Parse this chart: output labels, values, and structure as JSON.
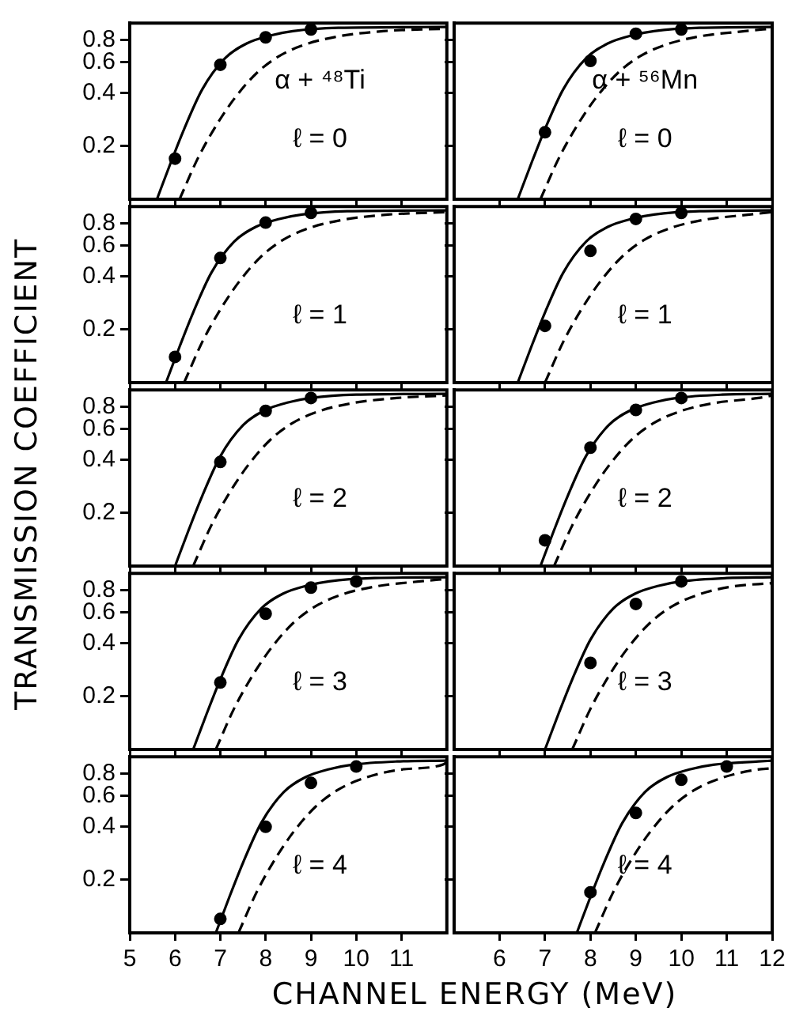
{
  "chart_data": [
    {
      "type": "line",
      "log": true,
      "xlim": [
        5,
        12
      ],
      "ylim": [
        0.1,
        1
      ],
      "xticks": [
        5,
        6,
        7,
        8,
        9,
        10,
        11
      ],
      "yticks": [
        0.2,
        0.4,
        0.6,
        0.8
      ],
      "tick_labels": "y",
      "annotations": [
        "α + ⁴⁸Ti",
        "ℓ = 0"
      ],
      "series": [
        {
          "type": "scatter",
          "marker": "circle",
          "color": "#000000",
          "x": [
            6,
            7,
            8,
            9
          ],
          "values": [
            0.17,
            0.58,
            0.83,
            0.92
          ]
        },
        {
          "type": "line",
          "marker": "none",
          "line_style": "solid",
          "color": "#000000",
          "x": [
            5.6,
            5.9,
            6.2,
            6.6,
            7.1,
            7.6,
            8.1,
            8.6,
            9.6,
            12
          ],
          "values": [
            0.1,
            0.16,
            0.25,
            0.42,
            0.63,
            0.77,
            0.85,
            0.9,
            0.94,
            0.95
          ]
        },
        {
          "type": "line",
          "marker": "none",
          "line_style": "dashed",
          "color": "#000000",
          "x": [
            6.1,
            6.5,
            6.9,
            7.3,
            7.8,
            8.3,
            8.9,
            9.6,
            10.6,
            12
          ],
          "values": [
            0.1,
            0.17,
            0.26,
            0.37,
            0.52,
            0.65,
            0.76,
            0.84,
            0.9,
            0.93
          ]
        }
      ]
    },
    {
      "type": "line",
      "log": true,
      "xlim": [
        5,
        12
      ],
      "ylim": [
        0.1,
        1
      ],
      "xticks": [
        6,
        7,
        8,
        9,
        10,
        11,
        12
      ],
      "yticks": [
        0.2,
        0.4,
        0.6,
        0.8
      ],
      "tick_labels": false,
      "annotations": [
        "α + ⁵⁶Mn",
        "ℓ = 0"
      ],
      "series": [
        {
          "type": "scatter",
          "marker": "circle",
          "color": "#000000",
          "x": [
            7,
            8,
            9,
            10
          ],
          "values": [
            0.24,
            0.61,
            0.87,
            0.92
          ]
        },
        {
          "type": "line",
          "marker": "none",
          "line_style": "solid",
          "color": "#000000",
          "x": [
            6.4,
            6.7,
            7.0,
            7.4,
            7.9,
            8.4,
            8.9,
            9.4,
            10.4,
            12
          ],
          "values": [
            0.1,
            0.16,
            0.25,
            0.42,
            0.63,
            0.77,
            0.85,
            0.9,
            0.94,
            0.95
          ]
        },
        {
          "type": "line",
          "marker": "none",
          "line_style": "dashed",
          "color": "#000000",
          "x": [
            6.9,
            7.3,
            7.7,
            8.1,
            8.6,
            9.1,
            9.7,
            10.4,
            11.4,
            12
          ],
          "values": [
            0.1,
            0.17,
            0.26,
            0.37,
            0.52,
            0.65,
            0.76,
            0.84,
            0.9,
            0.93
          ]
        }
      ]
    },
    {
      "type": "line",
      "log": true,
      "xlim": [
        5,
        12
      ],
      "ylim": [
        0.1,
        1
      ],
      "xticks": [
        5,
        6,
        7,
        8,
        9,
        10,
        11
      ],
      "yticks": [
        0.2,
        0.4,
        0.6,
        0.8
      ],
      "tick_labels": "y",
      "annotations": [
        "ℓ = 1"
      ],
      "series": [
        {
          "type": "scatter",
          "marker": "circle",
          "color": "#000000",
          "x": [
            6,
            7,
            8,
            9
          ],
          "values": [
            0.14,
            0.51,
            0.81,
            0.92
          ]
        },
        {
          "type": "line",
          "marker": "none",
          "line_style": "solid",
          "color": "#000000",
          "x": [
            5.8,
            6.1,
            6.4,
            6.8,
            7.3,
            7.8,
            8.3,
            8.8,
            9.8,
            12
          ],
          "values": [
            0.1,
            0.16,
            0.25,
            0.42,
            0.63,
            0.77,
            0.85,
            0.9,
            0.94,
            0.95
          ]
        },
        {
          "type": "line",
          "marker": "none",
          "line_style": "dashed",
          "color": "#000000",
          "x": [
            6.2,
            6.6,
            7.0,
            7.4,
            7.9,
            8.4,
            9.0,
            9.7,
            10.7,
            12
          ],
          "values": [
            0.1,
            0.17,
            0.26,
            0.37,
            0.52,
            0.65,
            0.76,
            0.84,
            0.9,
            0.93
          ]
        }
      ]
    },
    {
      "type": "line",
      "log": true,
      "xlim": [
        5,
        12
      ],
      "ylim": [
        0.1,
        1
      ],
      "xticks": [
        6,
        7,
        8,
        9,
        10,
        11,
        12
      ],
      "yticks": [
        0.2,
        0.4,
        0.6,
        0.8
      ],
      "tick_labels": false,
      "annotations": [
        "ℓ = 1"
      ],
      "series": [
        {
          "type": "scatter",
          "marker": "circle",
          "color": "#000000",
          "x": [
            7,
            8,
            9,
            10
          ],
          "values": [
            0.21,
            0.56,
            0.85,
            0.92
          ]
        },
        {
          "type": "line",
          "marker": "none",
          "line_style": "solid",
          "color": "#000000",
          "x": [
            6.4,
            6.7,
            7.0,
            7.4,
            7.9,
            8.4,
            8.9,
            9.4,
            10.4,
            12
          ],
          "values": [
            0.1,
            0.16,
            0.25,
            0.42,
            0.63,
            0.77,
            0.85,
            0.9,
            0.94,
            0.95
          ]
        },
        {
          "type": "line",
          "marker": "none",
          "line_style": "dashed",
          "color": "#000000",
          "x": [
            7.0,
            7.4,
            7.8,
            8.2,
            8.7,
            9.2,
            9.8,
            10.5,
            11.5,
            12
          ],
          "values": [
            0.1,
            0.17,
            0.26,
            0.37,
            0.52,
            0.65,
            0.76,
            0.84,
            0.9,
            0.93
          ]
        }
      ]
    },
    {
      "type": "line",
      "log": true,
      "xlim": [
        5,
        12
      ],
      "ylim": [
        0.1,
        1
      ],
      "xticks": [
        5,
        6,
        7,
        8,
        9,
        10,
        11
      ],
      "yticks": [
        0.2,
        0.4,
        0.6,
        0.8
      ],
      "tick_labels": "y",
      "ylabel": "TRANSMISSION COEFFICIENT",
      "annotations": [
        "ℓ = 2"
      ],
      "series": [
        {
          "type": "scatter",
          "marker": "circle",
          "color": "#000000",
          "x": [
            7,
            8,
            9
          ],
          "values": [
            0.39,
            0.76,
            0.9
          ]
        },
        {
          "type": "line",
          "marker": "none",
          "line_style": "solid",
          "color": "#000000",
          "x": [
            6.0,
            6.3,
            6.6,
            7.0,
            7.5,
            8.0,
            8.5,
            9.0,
            10.0,
            12
          ],
          "values": [
            0.1,
            0.16,
            0.25,
            0.42,
            0.63,
            0.77,
            0.85,
            0.9,
            0.94,
            0.95
          ]
        },
        {
          "type": "line",
          "marker": "none",
          "line_style": "dashed",
          "color": "#000000",
          "x": [
            6.4,
            6.8,
            7.2,
            7.6,
            8.1,
            8.6,
            9.2,
            9.9,
            10.9,
            12
          ],
          "values": [
            0.1,
            0.17,
            0.26,
            0.37,
            0.52,
            0.65,
            0.76,
            0.84,
            0.9,
            0.93
          ]
        }
      ]
    },
    {
      "type": "line",
      "log": true,
      "xlim": [
        5,
        12
      ],
      "ylim": [
        0.1,
        1
      ],
      "xticks": [
        6,
        7,
        8,
        9,
        10,
        11,
        12
      ],
      "yticks": [
        0.2,
        0.4,
        0.6,
        0.8
      ],
      "tick_labels": false,
      "annotations": [
        "ℓ = 2"
      ],
      "series": [
        {
          "type": "scatter",
          "marker": "circle",
          "color": "#000000",
          "x": [
            7,
            8,
            9,
            10
          ],
          "values": [
            0.14,
            0.47,
            0.77,
            0.9
          ]
        },
        {
          "type": "line",
          "marker": "none",
          "line_style": "solid",
          "color": "#000000",
          "x": [
            6.9,
            7.2,
            7.5,
            7.9,
            8.4,
            8.9,
            9.4,
            9.9,
            10.9,
            12
          ],
          "values": [
            0.1,
            0.16,
            0.25,
            0.42,
            0.63,
            0.77,
            0.85,
            0.9,
            0.94,
            0.95
          ]
        },
        {
          "type": "line",
          "marker": "none",
          "line_style": "dashed",
          "color": "#000000",
          "x": [
            7.2,
            7.6,
            8.0,
            8.4,
            8.9,
            9.4,
            10.0,
            10.7,
            11.7,
            12
          ],
          "values": [
            0.1,
            0.17,
            0.26,
            0.37,
            0.52,
            0.65,
            0.76,
            0.84,
            0.9,
            0.93
          ]
        }
      ]
    },
    {
      "type": "line",
      "log": true,
      "xlim": [
        5,
        12
      ],
      "ylim": [
        0.1,
        1
      ],
      "xticks": [
        5,
        6,
        7,
        8,
        9,
        10,
        11
      ],
      "yticks": [
        0.2,
        0.4,
        0.6,
        0.8
      ],
      "tick_labels": "y",
      "annotations": [
        "ℓ = 3"
      ],
      "series": [
        {
          "type": "scatter",
          "marker": "circle",
          "color": "#000000",
          "x": [
            7,
            8,
            9,
            10
          ],
          "values": [
            0.24,
            0.59,
            0.83,
            0.9
          ]
        },
        {
          "type": "line",
          "marker": "none",
          "line_style": "solid",
          "color": "#000000",
          "x": [
            6.4,
            6.7,
            7.0,
            7.4,
            7.9,
            8.4,
            8.9,
            9.4,
            10.4,
            12
          ],
          "values": [
            0.1,
            0.16,
            0.25,
            0.42,
            0.63,
            0.77,
            0.85,
            0.9,
            0.94,
            0.95
          ]
        },
        {
          "type": "line",
          "marker": "none",
          "line_style": "dashed",
          "color": "#000000",
          "x": [
            6.9,
            7.3,
            7.7,
            8.1,
            8.6,
            9.1,
            9.7,
            10.4,
            11.4,
            12
          ],
          "values": [
            0.1,
            0.17,
            0.26,
            0.37,
            0.52,
            0.65,
            0.76,
            0.84,
            0.9,
            0.93
          ]
        }
      ]
    },
    {
      "type": "line",
      "log": true,
      "xlim": [
        5,
        12
      ],
      "ylim": [
        0.1,
        1
      ],
      "xticks": [
        6,
        7,
        8,
        9,
        10,
        11,
        12
      ],
      "yticks": [
        0.2,
        0.4,
        0.6,
        0.8
      ],
      "tick_labels": false,
      "annotations": [
        "ℓ = 3"
      ],
      "series": [
        {
          "type": "scatter",
          "marker": "circle",
          "color": "#000000",
          "x": [
            8,
            9,
            10
          ],
          "values": [
            0.31,
            0.67,
            0.9
          ]
        },
        {
          "type": "line",
          "marker": "none",
          "line_style": "solid",
          "color": "#000000",
          "x": [
            7.0,
            7.3,
            7.6,
            8.0,
            8.5,
            9.0,
            9.5,
            10.0,
            11.0,
            12
          ],
          "values": [
            0.1,
            0.16,
            0.25,
            0.42,
            0.63,
            0.77,
            0.85,
            0.9,
            0.94,
            0.95
          ]
        },
        {
          "type": "line",
          "marker": "none",
          "line_style": "dashed",
          "color": "#000000",
          "x": [
            7.6,
            8.0,
            8.4,
            8.8,
            9.3,
            9.8,
            10.4,
            11.1,
            12
          ],
          "values": [
            0.1,
            0.17,
            0.26,
            0.37,
            0.52,
            0.65,
            0.76,
            0.84,
            0.88
          ]
        }
      ]
    },
    {
      "type": "line",
      "log": true,
      "xlim": [
        5,
        12
      ],
      "ylim": [
        0.1,
        1
      ],
      "xticks": [
        5,
        6,
        7,
        8,
        9,
        10,
        11
      ],
      "yticks": [
        0.2,
        0.4,
        0.6,
        0.8
      ],
      "xlabel": "CHANNEL ENERGY (MeV)",
      "annotations": [
        "ℓ = 4"
      ],
      "series": [
        {
          "type": "scatter",
          "marker": "circle",
          "color": "#000000",
          "x": [
            7,
            8,
            9,
            10
          ],
          "values": [
            0.12,
            0.4,
            0.71,
            0.88
          ]
        },
        {
          "type": "line",
          "marker": "none",
          "line_style": "solid",
          "color": "#000000",
          "x": [
            6.9,
            7.2,
            7.5,
            7.9,
            8.4,
            8.9,
            9.4,
            9.9,
            10.9,
            12
          ],
          "values": [
            0.1,
            0.16,
            0.25,
            0.42,
            0.63,
            0.77,
            0.85,
            0.9,
            0.94,
            0.95
          ]
        },
        {
          "type": "line",
          "marker": "none",
          "line_style": "dashed",
          "color": "#000000",
          "x": [
            7.4,
            7.8,
            8.2,
            8.6,
            9.1,
            9.6,
            10.2,
            10.9,
            11.9,
            12
          ],
          "values": [
            0.1,
            0.17,
            0.26,
            0.37,
            0.52,
            0.65,
            0.76,
            0.84,
            0.9,
            0.93
          ]
        }
      ]
    },
    {
      "type": "line",
      "log": true,
      "xlim": [
        5,
        12
      ],
      "ylim": [
        0.1,
        1
      ],
      "xticks": [
        6,
        7,
        8,
        9,
        10,
        11,
        12
      ],
      "yticks": [
        0.2,
        0.4,
        0.6,
        0.8
      ],
      "tick_labels": "x",
      "annotations": [
        "ℓ = 4"
      ],
      "series": [
        {
          "type": "scatter",
          "marker": "circle",
          "color": "#000000",
          "x": [
            8,
            9,
            10,
            11
          ],
          "values": [
            0.17,
            0.48,
            0.74,
            0.88
          ]
        },
        {
          "type": "line",
          "marker": "none",
          "line_style": "solid",
          "color": "#000000",
          "x": [
            7.7,
            8.0,
            8.3,
            8.7,
            9.2,
            9.7,
            10.2,
            10.7,
            11.7,
            12
          ],
          "values": [
            0.1,
            0.16,
            0.25,
            0.42,
            0.63,
            0.77,
            0.85,
            0.9,
            0.94,
            0.95
          ]
        },
        {
          "type": "line",
          "marker": "none",
          "line_style": "dashed",
          "color": "#000000",
          "x": [
            8.1,
            8.5,
            8.9,
            9.3,
            9.8,
            10.3,
            10.9,
            11.6,
            12
          ],
          "values": [
            0.1,
            0.17,
            0.26,
            0.37,
            0.52,
            0.65,
            0.76,
            0.84,
            0.86
          ]
        }
      ]
    }
  ]
}
